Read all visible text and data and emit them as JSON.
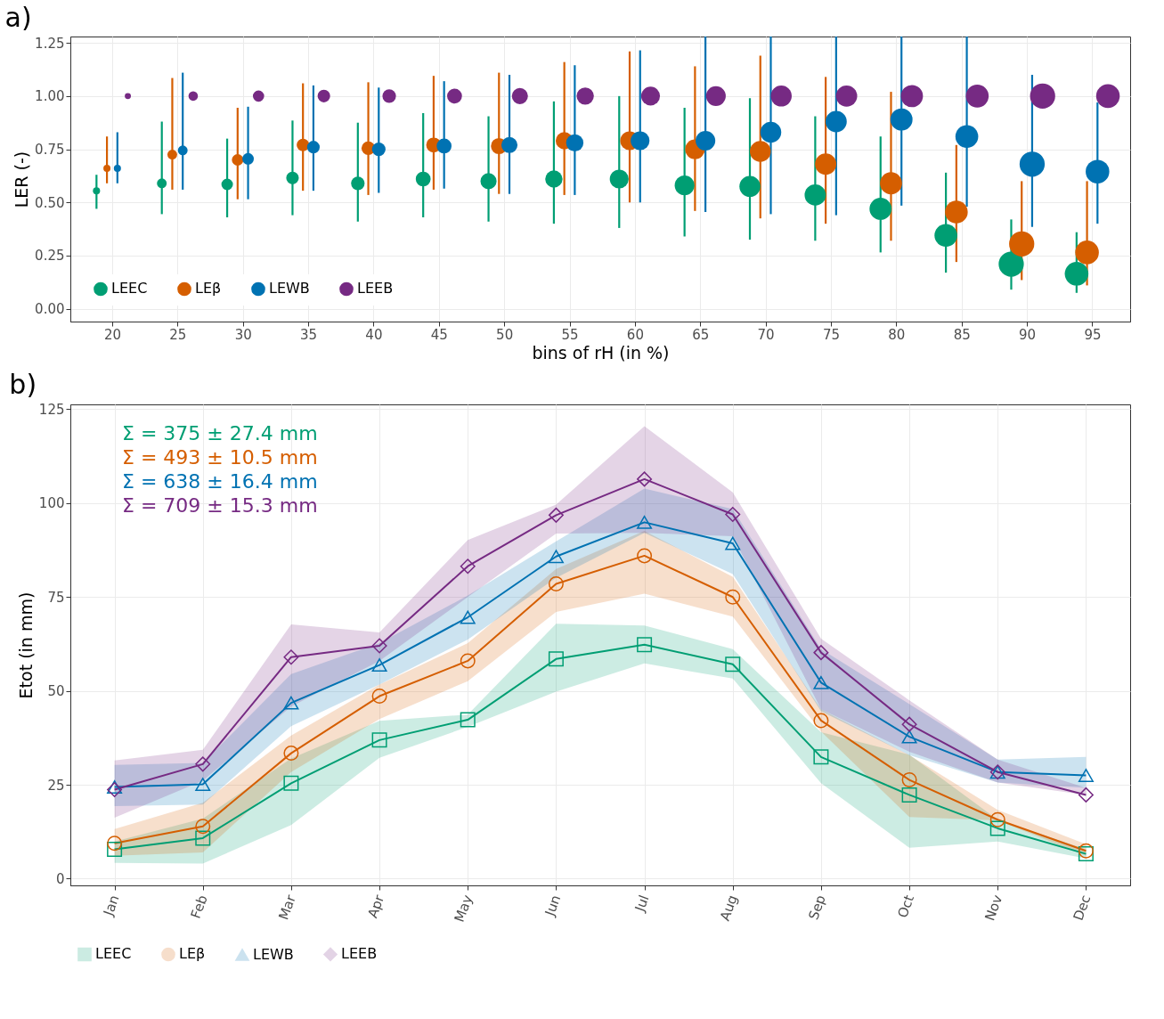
{
  "chart_data": [
    {
      "type": "bubble",
      "title": "a)",
      "xlabel": "bins of rH (in %)",
      "ylabel": "LER (-)",
      "xlim": [
        16.8,
        97.9
      ],
      "xticks": [
        20,
        25,
        30,
        35,
        40,
        45,
        50,
        55,
        60,
        65,
        70,
        75,
        80,
        85,
        90,
        95
      ],
      "ylim": [
        -0.06,
        1.28
      ],
      "yticks": [
        {
          "value": 0,
          "label": "0.00"
        },
        {
          "value": 0.25,
          "label": "0.25"
        },
        {
          "value": 0.5,
          "label": "0.50"
        },
        {
          "value": 0.75,
          "label": "0.75"
        },
        {
          "value": 1,
          "label": "1.00"
        },
        {
          "value": 1.25,
          "label": "1.25"
        }
      ],
      "grid": true,
      "legend": "bottom left",
      "series": [
        {
          "name": "LEEC",
          "color": "#009e73",
          "x": [
            18.8,
            23.8,
            28.8,
            33.8,
            38.8,
            43.8,
            48.8,
            53.8,
            58.8,
            63.8,
            68.8,
            73.8,
            78.8,
            83.8,
            88.8,
            93.8
          ],
          "values": [
            0.555,
            0.59,
            0.585,
            0.615,
            0.59,
            0.61,
            0.6,
            0.61,
            0.61,
            0.58,
            0.575,
            0.535,
            0.47,
            0.345,
            0.21,
            0.165
          ],
          "errors": [
            [
              0.47,
              0.63
            ],
            [
              0.445,
              0.88
            ],
            [
              0.43,
              0.8
            ],
            [
              0.44,
              0.885
            ],
            [
              0.41,
              0.875
            ],
            [
              0.43,
              0.92
            ],
            [
              0.41,
              0.905
            ],
            [
              0.4,
              0.975
            ],
            [
              0.38,
              1.0
            ],
            [
              0.34,
              0.945
            ],
            [
              0.325,
              0.99
            ],
            [
              0.32,
              0.905
            ],
            [
              0.265,
              0.81
            ],
            [
              0.17,
              0.64
            ],
            [
              0.09,
              0.42
            ],
            [
              0.075,
              0.36
            ]
          ],
          "sizes": [
            0.08,
            0.15,
            0.21,
            0.25,
            0.29,
            0.35,
            0.41,
            0.47,
            0.56,
            0.61,
            0.69,
            0.71,
            0.77,
            0.82,
            1.0,
            0.88
          ]
        },
        {
          "name": "LEβ",
          "color": "#d55e00",
          "x": [
            19.6,
            24.6,
            29.6,
            34.6,
            39.6,
            44.6,
            49.6,
            54.6,
            59.6,
            64.6,
            69.6,
            74.6,
            79.6,
            84.6,
            89.6,
            94.6
          ],
          "values": [
            0.66,
            0.725,
            0.7,
            0.77,
            0.755,
            0.77,
            0.765,
            0.79,
            0.79,
            0.75,
            0.74,
            0.68,
            0.59,
            0.455,
            0.305,
            0.265
          ],
          "errors": [
            [
              0.59,
              0.81
            ],
            [
              0.56,
              1.085
            ],
            [
              0.515,
              0.945
            ],
            [
              0.555,
              1.06
            ],
            [
              0.535,
              1.065
            ],
            [
              0.56,
              1.095
            ],
            [
              0.54,
              1.11
            ],
            [
              0.535,
              1.16
            ],
            [
              0.5,
              1.21
            ],
            [
              0.46,
              1.14
            ],
            [
              0.425,
              1.19
            ],
            [
              0.4,
              1.09
            ],
            [
              0.32,
              1.02
            ],
            [
              0.22,
              0.77
            ],
            [
              0.135,
              0.6
            ],
            [
              0.11,
              0.6
            ]
          ],
          "sizes": [
            0.08,
            0.15,
            0.21,
            0.25,
            0.29,
            0.35,
            0.41,
            0.47,
            0.56,
            0.61,
            0.69,
            0.71,
            0.77,
            0.82,
            1.0,
            0.88
          ]
        },
        {
          "name": "LEWB",
          "color": "#0072b2",
          "x": [
            20.4,
            25.4,
            30.4,
            35.4,
            40.4,
            45.4,
            50.4,
            55.4,
            60.4,
            65.4,
            70.4,
            75.4,
            80.4,
            85.4,
            90.4,
            95.4
          ],
          "values": [
            0.66,
            0.745,
            0.705,
            0.76,
            0.75,
            0.765,
            0.77,
            0.78,
            0.79,
            0.79,
            0.83,
            0.88,
            0.89,
            0.81,
            0.68,
            0.645
          ],
          "errors": [
            [
              0.59,
              0.83
            ],
            [
              0.56,
              1.11
            ],
            [
              0.515,
              0.95
            ],
            [
              0.555,
              1.05
            ],
            [
              0.545,
              1.04
            ],
            [
              0.565,
              1.07
            ],
            [
              0.54,
              1.1
            ],
            [
              0.535,
              1.145
            ],
            [
              0.5,
              1.215
            ],
            [
              0.455,
              1.28
            ],
            [
              0.445,
              1.28
            ],
            [
              0.44,
              1.28
            ],
            [
              0.485,
              1.28
            ],
            [
              0.48,
              1.28
            ],
            [
              0.385,
              1.1
            ],
            [
              0.4,
              0.97
            ]
          ],
          "sizes": [
            0.08,
            0.15,
            0.21,
            0.25,
            0.29,
            0.35,
            0.41,
            0.47,
            0.56,
            0.61,
            0.69,
            0.71,
            0.77,
            0.82,
            1.0,
            0.88
          ]
        },
        {
          "name": "LEEB",
          "color": "#762a83",
          "x": [
            21.2,
            26.2,
            31.2,
            36.2,
            41.2,
            46.2,
            51.2,
            56.2,
            61.2,
            66.2,
            71.2,
            76.2,
            81.2,
            86.2,
            91.2,
            96.2
          ],
          "values": [
            1,
            1,
            1,
            1,
            1,
            1,
            1,
            1,
            1,
            1,
            1,
            1,
            1,
            1,
            1,
            1
          ],
          "sizes": [
            0.06,
            0.14,
            0.2,
            0.25,
            0.29,
            0.35,
            0.41,
            0.47,
            0.56,
            0.61,
            0.69,
            0.71,
            0.77,
            0.82,
            1.0,
            0.88
          ]
        }
      ]
    },
    {
      "type": "line",
      "title": "b)",
      "ylabel": "Etot (in mm)",
      "categories": [
        "Jan",
        "Feb",
        "Mar",
        "Apr",
        "May",
        "Jun",
        "Jul",
        "Aug",
        "Sep",
        "Oct",
        "Nov",
        "Dec"
      ],
      "ylim": [
        -1.8,
        126.3
      ],
      "yticks": [
        0,
        25,
        50,
        75,
        100,
        125
      ],
      "grid": true,
      "legend": "bottom",
      "annotations": [
        "Σ =  375 ± 27.4 mm",
        "Σ =  493 ± 10.5 mm",
        "Σ =  638 ± 16.4 mm",
        "Σ =  709 ± 15.3 mm"
      ],
      "series": [
        {
          "name": "LEEC",
          "color": "#009e73",
          "marker": "square",
          "values": [
            7.8,
            10.8,
            25.4,
            36.9,
            42.3,
            58.5,
            62.3,
            57.1,
            32.4,
            22.3,
            13.4,
            6.6
          ],
          "lower": [
            4.2,
            4.0,
            14.3,
            32.2,
            40.4,
            49.8,
            57.3,
            53.3,
            25.4,
            8.2,
            9.9,
            5.4
          ],
          "upper": [
            9.9,
            16.0,
            32.0,
            42.0,
            43.7,
            67.9,
            67.4,
            61.1,
            39.0,
            33.0,
            15.7,
            7.8
          ]
        },
        {
          "name": "LEβ",
          "color": "#d55e00",
          "marker": "circle",
          "values": [
            9.4,
            13.9,
            33.4,
            48.6,
            58.0,
            78.5,
            86.0,
            75.0,
            42.1,
            26.3,
            15.7,
            7.4
          ],
          "lower": [
            6.1,
            7.0,
            28.4,
            42.5,
            52.6,
            71.0,
            75.9,
            69.8,
            39.2,
            16.4,
            15.5,
            6.1
          ],
          "upper": [
            13.2,
            20.2,
            38.1,
            51.7,
            62.7,
            82.5,
            92.6,
            80.4,
            45.1,
            32.9,
            18.3,
            9.2
          ]
        },
        {
          "name": "LEWB",
          "color": "#0072b2",
          "marker": "triangle",
          "values": [
            24.4,
            25.1,
            46.8,
            56.9,
            69.6,
            85.8,
            94.9,
            89.3,
            52.2,
            37.8,
            28.4,
            27.5
          ],
          "lower": [
            19.3,
            19.7,
            40.6,
            51.7,
            63.7,
            80.1,
            92.1,
            81.1,
            44.6,
            32.9,
            25.6,
            24.2
          ],
          "upper": [
            30.3,
            30.8,
            54.5,
            62.7,
            75.4,
            89.8,
            103.9,
            98.4,
            61.1,
            46.5,
            31.7,
            32.4
          ]
        },
        {
          "name": "LEEB",
          "color": "#762a83",
          "marker": "diamond",
          "values": [
            23.7,
            30.5,
            59.0,
            62.0,
            83.2,
            96.8,
            106.4,
            97.0,
            60.2,
            41.1,
            28.4,
            22.3
          ],
          "lower": [
            16.2,
            26.1,
            45.8,
            58.0,
            75.0,
            91.9,
            92.1,
            91.2,
            45.1,
            33.8,
            25.6,
            22.3
          ],
          "upper": [
            31.5,
            34.3,
            67.7,
            65.6,
            90.2,
            99.6,
            120.5,
            102.9,
            63.9,
            47.5,
            31.7,
            24.2
          ]
        }
      ]
    }
  ]
}
